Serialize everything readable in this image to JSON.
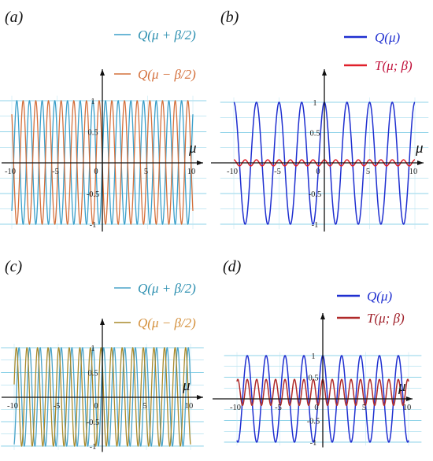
{
  "chart_data": [
    {
      "panel": "(a)",
      "type": "line",
      "xlabel": "μ",
      "xlim": [
        -11.5,
        11.5
      ],
      "ylim": [
        -1.1,
        1.1
      ],
      "xticks": [
        "-10",
        "-5",
        "0",
        "5",
        "10"
      ],
      "yticks": [
        "-1",
        "-0.5",
        "0.5",
        "1"
      ],
      "grid": true,
      "legend": "top-center",
      "series": [
        {
          "name": "Q(μ + β/2)",
          "color": "#3b9fc9",
          "period": 1.4,
          "phase": 0.35,
          "amplitude": 1,
          "offset": 0
        },
        {
          "name": "Q(μ − β/2)",
          "color": "#d4703c",
          "period": 1.4,
          "phase": -0.35,
          "amplitude": 1,
          "offset": 0
        }
      ]
    },
    {
      "panel": "(b)",
      "type": "line",
      "xlabel": "μ",
      "xlim": [
        -11.5,
        11.5
      ],
      "ylim": [
        -1.1,
        1.1
      ],
      "xticks": [
        "-10",
        "-5",
        "0",
        "5",
        "10"
      ],
      "yticks": [
        "-1",
        "-0.5",
        "0.5",
        "1"
      ],
      "grid": true,
      "legend": "top-right",
      "series": [
        {
          "name": "Q(μ)",
          "color": "#1f2fd0",
          "period": 2.5,
          "phase": 0,
          "amplitude": 1,
          "offset": 0
        },
        {
          "name": "T(μ; β)",
          "color": "#e0202a",
          "period": 1.25,
          "phase": 0,
          "amplitude": 0.05,
          "offset": 0
        }
      ]
    },
    {
      "panel": "(c)",
      "type": "line",
      "xlabel": "μ",
      "xlim": [
        -11.5,
        11.5
      ],
      "ylim": [
        -1.1,
        1.1
      ],
      "xticks": [
        "-10",
        "-5",
        "0",
        "5",
        "10"
      ],
      "yticks": [
        "-1",
        "-0.5",
        "0.5",
        "1"
      ],
      "grid": true,
      "legend": "top-center",
      "series": [
        {
          "name": "Q(μ + β/2)",
          "color": "#4aa3c8",
          "period": 1.2,
          "phase": 0.15,
          "amplitude": 1,
          "offset": 0
        },
        {
          "name": "Q(μ − β/2)",
          "color": "#a98a2c",
          "period": 1.2,
          "phase": -0.15,
          "amplitude": 1,
          "offset": 0
        }
      ]
    },
    {
      "panel": "(d)",
      "type": "line",
      "xlabel": "μ",
      "xlim": [
        -11.5,
        11.5
      ],
      "ylim": [
        -1.1,
        1.1
      ],
      "xticks": [
        "-10",
        "-5",
        "0",
        "5",
        "10"
      ],
      "yticks": [
        "-1",
        "-0.5",
        "0.5",
        "1"
      ],
      "grid": true,
      "legend": "top-right",
      "series": [
        {
          "name": "Q(μ)",
          "color": "#1f2fd0",
          "period": 2.2,
          "phase": 0,
          "amplitude": 1,
          "offset": 0
        },
        {
          "name": "T(μ; β)",
          "color": "#b02a2a",
          "period": 1.1,
          "phase": 0,
          "amplitude": 0.3,
          "offset": 0.15
        }
      ]
    }
  ]
}
